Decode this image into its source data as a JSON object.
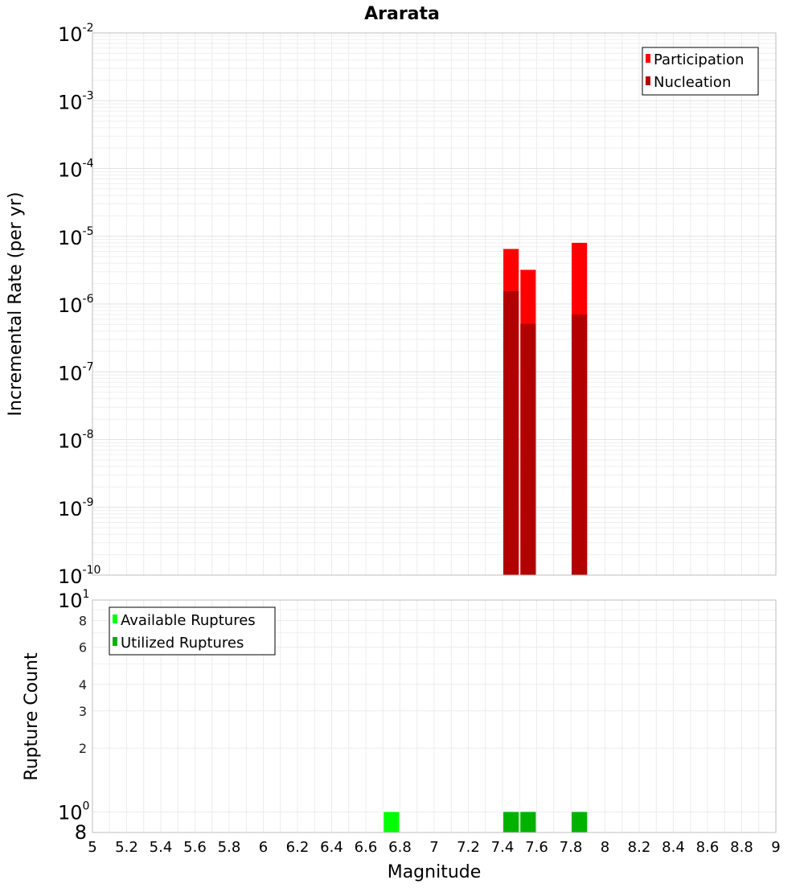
{
  "chart_data": [
    {
      "type": "bar",
      "title": "Ararata",
      "xlabel": "",
      "ylabel": "Incremental Rate (per yr)",
      "yscale": "log",
      "xlim": [
        5,
        9
      ],
      "ylim": [
        1e-10,
        0.01
      ],
      "grid": true,
      "legend_position": "top-right",
      "y_ticks": [
        {
          "base": "10",
          "exp": "-10"
        },
        {
          "base": "10",
          "exp": "-9"
        },
        {
          "base": "10",
          "exp": "-8"
        },
        {
          "base": "10",
          "exp": "-7"
        },
        {
          "base": "10",
          "exp": "-6"
        },
        {
          "base": "10",
          "exp": "-5"
        },
        {
          "base": "10",
          "exp": "-4"
        },
        {
          "base": "10",
          "exp": "-3"
        },
        {
          "base": "10",
          "exp": "-2"
        }
      ],
      "series": [
        {
          "name": "Participation",
          "color": "#ff0000",
          "bin_width": 0.09,
          "x": [
            7.45,
            7.55,
            7.85
          ],
          "values": [
            6.5e-06,
            3.2e-06,
            8e-06
          ]
        },
        {
          "name": "Nucleation",
          "color": "#b20000",
          "bin_width": 0.09,
          "x": [
            7.45,
            7.55,
            7.85
          ],
          "values": [
            1.55e-06,
            5.1e-07,
            7e-07
          ]
        }
      ]
    },
    {
      "type": "bar",
      "xlabel": "Magnitude",
      "ylabel": "Rupture Count",
      "yscale": "log",
      "xlim": [
        5,
        9
      ],
      "ylim": [
        0.8,
        10
      ],
      "grid": true,
      "legend_position": "top-left",
      "x_ticks": [
        "5",
        "5.2",
        "5.4",
        "5.6",
        "5.8",
        "6",
        "6.2",
        "6.4",
        "6.6",
        "6.8",
        "7",
        "7.2",
        "7.4",
        "7.6",
        "7.8",
        "8",
        "8.2",
        "8.4",
        "8.6",
        "8.8",
        "9"
      ],
      "y_ticks": [
        {
          "value": 0.8,
          "label": "8",
          "exp": ""
        },
        {
          "value": 1,
          "label": "10",
          "exp": "0"
        },
        {
          "value": 2,
          "label": "2",
          "exp": ""
        },
        {
          "value": 3,
          "label": "3",
          "exp": ""
        },
        {
          "value": 4,
          "label": "4",
          "exp": ""
        },
        {
          "value": 6,
          "label": "6",
          "exp": ""
        },
        {
          "value": 8,
          "label": "8",
          "exp": ""
        },
        {
          "value": 10,
          "label": "10",
          "exp": "1"
        }
      ],
      "series": [
        {
          "name": "Available Ruptures",
          "color": "#00ff00",
          "bin_width": 0.09,
          "x": [
            6.75,
            7.45,
            7.55,
            7.85
          ],
          "values": [
            1,
            1,
            1,
            1
          ]
        },
        {
          "name": "Utilized Ruptures",
          "color": "#00b200",
          "bin_width": 0.09,
          "x": [
            7.45,
            7.55,
            7.85
          ],
          "values": [
            1,
            1,
            1
          ]
        }
      ]
    }
  ]
}
